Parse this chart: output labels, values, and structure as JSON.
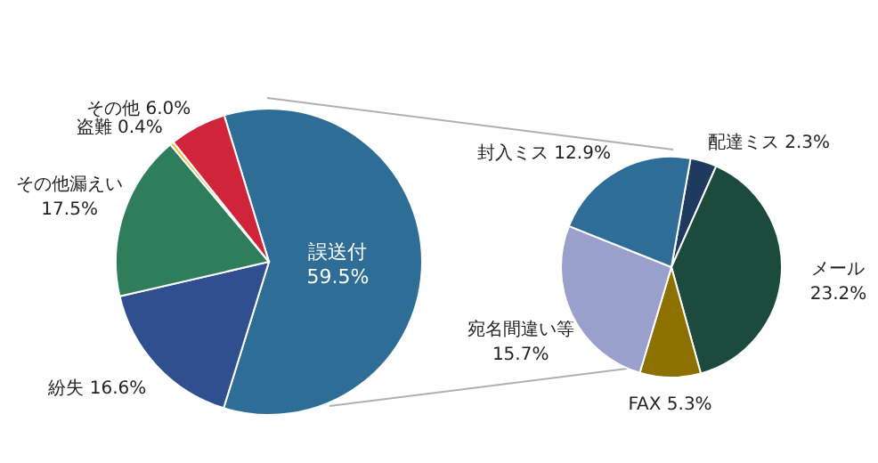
{
  "chart_data": [
    {
      "type": "pie",
      "categories": [
        "誤送付",
        "紛失",
        "その他漏えい",
        "盗難",
        "その他"
      ],
      "values": [
        59.5,
        16.6,
        17.5,
        0.4,
        6.0
      ],
      "value_labels": [
        "59.5%",
        "16.6%",
        "17.5%",
        "0.4%",
        "6.0%"
      ],
      "colors": [
        "#2e6e96",
        "#2f4f8f",
        "#2e7d5b",
        "#e8c040",
        "#d0243a"
      ],
      "legend": false
    },
    {
      "type": "pie",
      "categories": [
        "配達ミス",
        "メール",
        "FAX",
        "宛名間違い等",
        "封入ミス"
      ],
      "values": [
        2.3,
        23.2,
        5.3,
        15.7,
        12.9
      ],
      "value_labels": [
        "2.3%",
        "23.2%",
        "5.3%",
        "15.7%",
        "12.9%"
      ],
      "colors": [
        "#1f3a5f",
        "#1c4a3c",
        "#8c7000",
        "#9aa0cc",
        "#2e6e96"
      ],
      "legend": false
    }
  ]
}
